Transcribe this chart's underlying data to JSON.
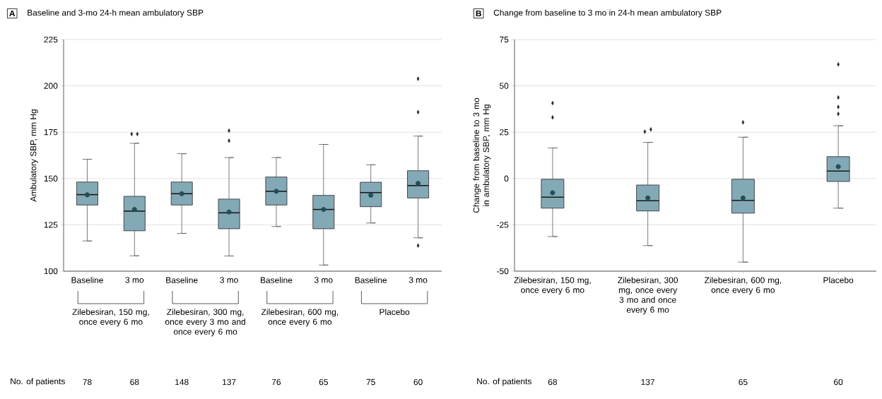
{
  "chart_data": [
    {
      "type": "box",
      "title": "Baseline and 3-mo 24-h mean ambulatory SBP",
      "ylabel": "Ambulatory SBP, mm Hg",
      "categories": [
        "Baseline",
        "3 mo",
        "Baseline",
        "3 mo",
        "Baseline",
        "3 mo",
        "Baseline",
        "3 mo"
      ],
      "series": [
        {
          "color": "#84a9b6",
          "boxes": [
            {
              "low": 116.3,
              "q1": 135.7,
              "median": 141.3,
              "q3": 148.1,
              "high": 160.4,
              "mean": 141.2
            },
            {
              "low": 108.3,
              "q1": 121.8,
              "median": 132.4,
              "q3": 140.4,
              "high": 169.0,
              "mean": 133.3,
              "outliers": [
                174.0,
                174.0
              ]
            },
            {
              "low": 120.4,
              "q1": 135.7,
              "median": 141.8,
              "q3": 148.1,
              "high": 163.4,
              "mean": 141.8
            },
            {
              "low": 108.2,
              "q1": 122.9,
              "median": 131.5,
              "q3": 138.9,
              "high": 161.3,
              "mean": 131.9,
              "outliers": [
                175.8,
                170.4
              ]
            },
            {
              "low": 124.1,
              "q1": 135.7,
              "median": 143.1,
              "q3": 150.8,
              "high": 161.3,
              "mean": 143.1
            },
            {
              "low": 103.3,
              "q1": 122.9,
              "median": 133.3,
              "q3": 140.9,
              "high": 168.4,
              "mean": 133.3
            },
            {
              "low": 126.0,
              "q1": 134.8,
              "median": 142.4,
              "q3": 148.0,
              "high": 157.4,
              "mean": 141.0
            },
            {
              "low": 118.0,
              "q1": 139.5,
              "median": 146.2,
              "q3": 154.2,
              "high": 172.9,
              "mean": 147.4,
              "outliers": [
                203.8,
                185.8,
                113.8
              ]
            }
          ]
        }
      ],
      "ylim": [
        100,
        225
      ],
      "yticks": [
        100,
        125,
        150,
        175,
        200,
        225
      ],
      "grid": "y",
      "annotations": [
        "A",
        "Zilebesiran, 150 mg, once every 6 mo",
        "Zilebesiran, 300 mg, once every 3 mo and once every 6 mo",
        "Zilebesiran, 600 mg, once every 6 mo",
        "Placebo",
        "No. of patients",
        "78",
        "68",
        "148",
        "137",
        "76",
        "65",
        "75",
        "60"
      ]
    },
    {
      "type": "box",
      "title": "Change from baseline to 3 mo in 24-h mean ambulatory SBP",
      "ylabel": "Change from baseline to 3 mo in ambulatory SBP, mm Hg",
      "categories": [
        "Zilebesiran, 150 mg, once every 6 mo",
        "Zilebesiran, 300 mg, once every 3 mo and once every 6 mo",
        "Zilebesiran, 600 mg, once every 6 mo",
        "Placebo"
      ],
      "series": [
        {
          "color": "#84a9b6",
          "boxes": [
            {
              "low": -31.3,
              "q1": -16.0,
              "median": -10.1,
              "q3": -0.4,
              "high": 16.5,
              "mean": -7.7,
              "outliers": [
                40.7,
                33.0
              ]
            },
            {
              "low": -36.2,
              "q1": -17.5,
              "median": -12.0,
              "q3": -3.5,
              "high": 19.5,
              "mean": -10.5,
              "outliers": [
                25.3,
                26.5
              ]
            },
            {
              "low": -45.1,
              "q1": -18.7,
              "median": -11.8,
              "q3": -0.4,
              "high": 22.3,
              "mean": -10.5,
              "outliers": [
                30.3
              ]
            },
            {
              "low": -16.0,
              "q1": -1.6,
              "median": 4.0,
              "q3": 11.8,
              "high": 28.5,
              "mean": 6.4,
              "outliers": [
                61.6,
                43.7,
                38.6,
                34.9
              ]
            }
          ]
        }
      ],
      "ylim": [
        -50,
        75
      ],
      "yticks": [
        -50,
        -25,
        0,
        25,
        50,
        75
      ],
      "grid": "y",
      "annotations": [
        "B",
        "No. of patients",
        "68",
        "137",
        "65",
        "60"
      ]
    }
  ]
}
